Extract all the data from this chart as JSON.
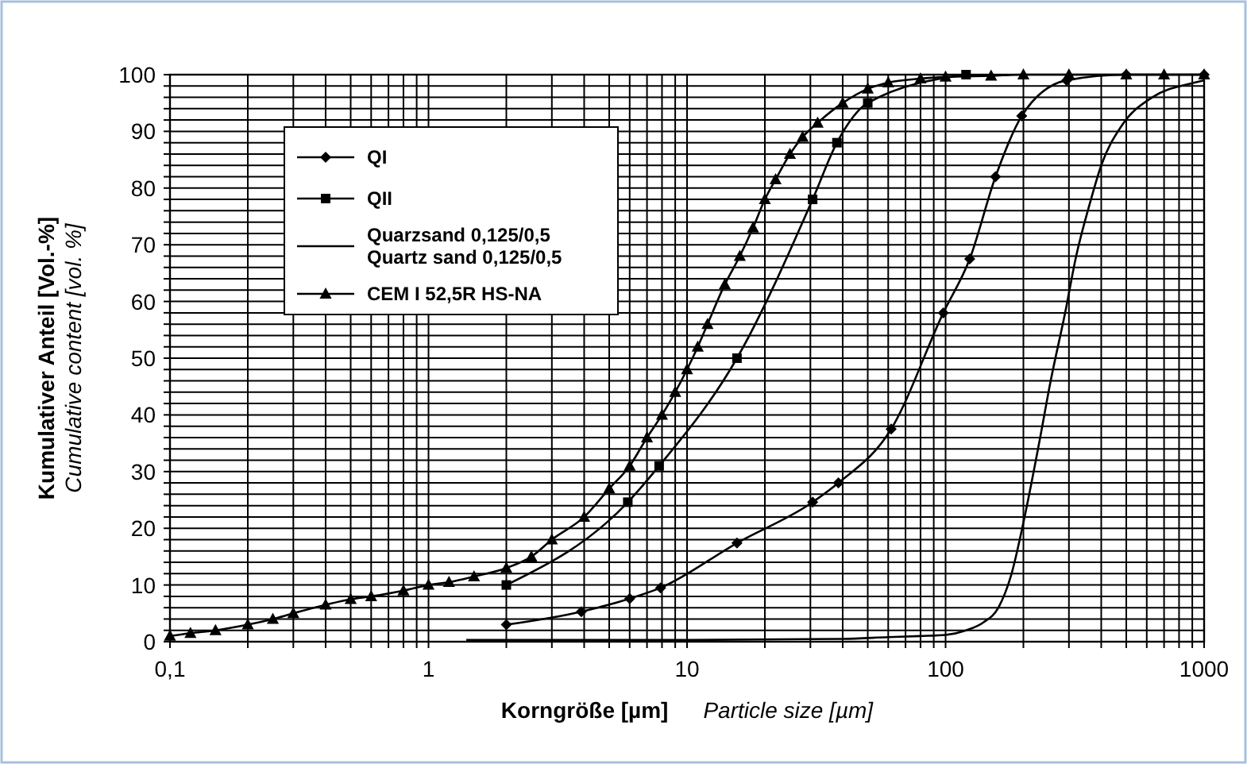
{
  "chart_data": {
    "type": "line",
    "xlabel": "Korngröße [µm]\nParticle size [µm]",
    "ylabel": "Kumulativer Anteil [Vol.-%]\nCumulative content [vol. %]",
    "log": "x",
    "grid": true,
    "legend": "top left",
    "xlim": [
      0.1,
      1000
    ],
    "ylim": [
      0,
      100
    ],
    "xticks": [
      {
        "value": 0.1,
        "label": "0,1"
      },
      {
        "value": 0.2,
        "label": null
      },
      {
        "value": 0.3,
        "label": null
      },
      {
        "value": 0.4,
        "label": null
      },
      {
        "value": 0.5,
        "label": null
      },
      {
        "value": 0.6,
        "label": null
      },
      {
        "value": 0.7,
        "label": null
      },
      {
        "value": 0.8,
        "label": null
      },
      {
        "value": 0.9,
        "label": null
      },
      1,
      {
        "value": 2,
        "label": null
      },
      {
        "value": 3,
        "label": null
      },
      {
        "value": 4,
        "label": null
      },
      {
        "value": 5,
        "label": null
      },
      {
        "value": 6,
        "label": null
      },
      {
        "value": 7,
        "label": null
      },
      {
        "value": 8,
        "label": null
      },
      {
        "value": 9,
        "label": null
      },
      10,
      {
        "value": 20,
        "label": null
      },
      {
        "value": 30,
        "label": null
      },
      {
        "value": 40,
        "label": null
      },
      {
        "value": 50,
        "label": null
      },
      {
        "value": 60,
        "label": null
      },
      {
        "value": 70,
        "label": null
      },
      {
        "value": 80,
        "label": null
      },
      {
        "value": 90,
        "label": null
      },
      100,
      {
        "value": 200,
        "label": null
      },
      {
        "value": 300,
        "label": null
      },
      {
        "value": 400,
        "label": null
      },
      {
        "value": 500,
        "label": null
      },
      {
        "value": 600,
        "label": null
      },
      {
        "value": 700,
        "label": null
      },
      {
        "value": 800,
        "label": null
      },
      {
        "value": 900,
        "label": null
      },
      1000
    ],
    "yticks": [
      0,
      {
        "value": 2,
        "label": null
      },
      {
        "value": 4,
        "label": null
      },
      {
        "value": 6,
        "label": null
      },
      {
        "value": 8,
        "label": null
      },
      10,
      {
        "value": 12,
        "label": null
      },
      {
        "value": 14,
        "label": null
      },
      {
        "value": 16,
        "label": null
      },
      {
        "value": 18,
        "label": null
      },
      20,
      {
        "value": 22,
        "label": null
      },
      {
        "value": 24,
        "label": null
      },
      {
        "value": 26,
        "label": null
      },
      {
        "value": 28,
        "label": null
      },
      30,
      {
        "value": 32,
        "label": null
      },
      {
        "value": 34,
        "label": null
      },
      {
        "value": 36,
        "label": null
      },
      {
        "value": 38,
        "label": null
      },
      40,
      {
        "value": 42,
        "label": null
      },
      {
        "value": 44,
        "label": null
      },
      {
        "value": 46,
        "label": null
      },
      {
        "value": 48,
        "label": null
      },
      50,
      {
        "value": 52,
        "label": null
      },
      {
        "value": 54,
        "label": null
      },
      {
        "value": 56,
        "label": null
      },
      {
        "value": 58,
        "label": null
      },
      60,
      {
        "value": 62,
        "label": null
      },
      {
        "value": 64,
        "label": null
      },
      {
        "value": 66,
        "label": null
      },
      {
        "value": 68,
        "label": null
      },
      70,
      {
        "value": 72,
        "label": null
      },
      {
        "value": 74,
        "label": null
      },
      {
        "value": 76,
        "label": null
      },
      {
        "value": 78,
        "label": null
      },
      80,
      {
        "value": 82,
        "label": null
      },
      {
        "value": 84,
        "label": null
      },
      {
        "value": 86,
        "label": null
      },
      {
        "value": 88,
        "label": null
      },
      90,
      {
        "value": 92,
        "label": null
      },
      {
        "value": 94,
        "label": null
      },
      {
        "value": 96,
        "label": null
      },
      {
        "value": 98,
        "label": null
      },
      100
    ],
    "series": [
      {
        "name": "QI",
        "color": "#000000",
        "marker": "diamond",
        "x": [
          2,
          3.9,
          6,
          7.9,
          15.6,
          30.6,
          38.5,
          61.6,
          98,
          124,
          156,
          197,
          294,
          500,
          1000
        ],
        "values": [
          3,
          5.3,
          7.6,
          9.5,
          17.4,
          24.6,
          28,
          37.5,
          58,
          67.5,
          82,
          92.7,
          99,
          100,
          100
        ]
      },
      {
        "name": "QII",
        "color": "#000000",
        "marker": "square",
        "x": [
          2,
          5.9,
          7.8,
          15.6,
          30.6,
          38,
          50,
          120
        ],
        "values": [
          10,
          24.6,
          31,
          50,
          78,
          88,
          95,
          100
        ]
      },
      {
        "name": "Quarzsand 0,125/0,5\nQuartz sand 0,125/0,5",
        "color": "#000000",
        "marker": "none",
        "x": [
          1.4,
          10,
          40,
          60,
          80,
          100,
          120,
          140,
          160,
          180,
          200,
          230,
          255,
          290,
          320,
          360,
          400,
          480,
          630,
          900,
          1000
        ],
        "values": [
          0.3,
          0.3,
          0.5,
          0.8,
          1,
          1.2,
          2,
          3.4,
          6,
          12,
          21,
          35,
          46,
          58,
          68,
          77,
          84,
          91,
          96,
          98.5,
          99
        ]
      },
      {
        "name": "CEM I 52,5R HS-NA",
        "color": "#000000",
        "marker": "triangle",
        "x": [
          0.1,
          0.12,
          0.15,
          0.2,
          0.25,
          0.3,
          0.4,
          0.5,
          0.6,
          0.8,
          1,
          1.2,
          1.5,
          2,
          2.5,
          3,
          4,
          5,
          6,
          7,
          8,
          9,
          10,
          11,
          12,
          14,
          16,
          18,
          20,
          22,
          25,
          28,
          32,
          40,
          50,
          60,
          80,
          100,
          150,
          200,
          300,
          500,
          700,
          1000
        ],
        "values": [
          1,
          1.5,
          2,
          3,
          4,
          5,
          6.5,
          7.5,
          8,
          9,
          10,
          10.5,
          11.5,
          13,
          15,
          18,
          22,
          27,
          31,
          36,
          40,
          44,
          48,
          52,
          56,
          63,
          68,
          73,
          78,
          81.5,
          86,
          89,
          91.5,
          95,
          97.5,
          98.6,
          99.3,
          99.6,
          99.8,
          100,
          100,
          100,
          100,
          100
        ]
      }
    ]
  }
}
